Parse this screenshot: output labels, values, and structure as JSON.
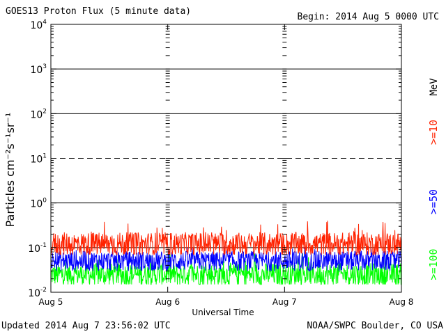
{
  "header": {
    "title": "GOES13 Proton Flux (5 minute data)",
    "begin": "Begin: 2014 Aug 5 0000 UTC"
  },
  "footer": {
    "updated": "Updated 2014 Aug  7 23:56:02 UTC",
    "credit": "NOAA/SWPC Boulder, CO USA"
  },
  "chart_data": {
    "type": "line",
    "title": "GOES13 Proton Flux (5 minute data)",
    "xlabel": "Universal Time",
    "ylabel": "Particles cm⁻²s⁻¹sr⁻¹",
    "yscale": "log",
    "ylim": [
      0.01,
      10000
    ],
    "yticks": [
      {
        "value": 0.01,
        "base": "10",
        "exp": "-2"
      },
      {
        "value": 0.1,
        "base": "10",
        "exp": "-1"
      },
      {
        "value": 1,
        "base": "10",
        "exp": "0"
      },
      {
        "value": 10,
        "base": "10",
        "exp": "1"
      },
      {
        "value": 100,
        "base": "10",
        "exp": "2"
      },
      {
        "value": 1000,
        "base": "10",
        "exp": "3"
      },
      {
        "value": 10000,
        "base": "10",
        "exp": "4"
      }
    ],
    "xticks": [
      "Aug 5",
      "Aug 6",
      "Aug 7",
      "Aug 8"
    ],
    "xlim": [
      "2014-08-05",
      "2014-08-08"
    ],
    "grid": true,
    "unit_label": "MeV",
    "colors": {
      "ge10": "#ff2200",
      "ge50": "#0000ff",
      "ge100": "#00ff00"
    },
    "series": [
      {
        "name": ">=10",
        "color": "#ff2200",
        "typical": 0.12,
        "min": 0.07,
        "max": 0.4
      },
      {
        "name": ">=50",
        "color": "#0000ff",
        "typical": 0.05,
        "min": 0.025,
        "max": 0.11
      },
      {
        "name": ">=100",
        "color": "#00ff00",
        "typical": 0.025,
        "min": 0.015,
        "max": 0.08
      }
    ]
  }
}
